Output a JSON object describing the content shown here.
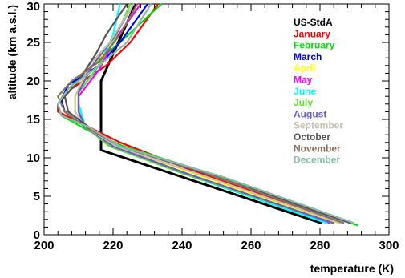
{
  "chart_data": {
    "type": "line",
    "title": "",
    "xlabel": "temperature (K)",
    "ylabel": "altitude (km a.s.l.)",
    "xlim": [
      200,
      300
    ],
    "ylim": [
      0,
      30
    ],
    "x_ticks": [
      "200",
      "220",
      "240",
      "260",
      "280",
      "300"
    ],
    "y_ticks": [
      "0",
      "5",
      "10",
      "15",
      "20",
      "25",
      "30"
    ],
    "legend_position": "top-right",
    "series": [
      {
        "name": "US-StdA",
        "color": "#000000",
        "points": [
          [
            280.5,
            1.5
          ],
          [
            216.5,
            11
          ],
          [
            216.5,
            20
          ],
          [
            226.5,
            30
          ]
        ]
      },
      {
        "name": "January",
        "color": "#ff0000",
        "points": [
          [
            287,
            1.5
          ],
          [
            245,
            8
          ],
          [
            222,
            12
          ],
          [
            213,
            14
          ],
          [
            204,
            16
          ],
          [
            204,
            17
          ],
          [
            208,
            19
          ],
          [
            218,
            22
          ],
          [
            225,
            25
          ],
          [
            233,
            30
          ]
        ]
      },
      {
        "name": "February",
        "color": "#00e000",
        "points": [
          [
            291,
            1.2
          ],
          [
            255,
            7
          ],
          [
            223,
            11.5
          ],
          [
            213,
            13.5
          ],
          [
            205,
            15.5
          ],
          [
            204,
            17
          ],
          [
            206,
            18.5
          ],
          [
            214,
            22
          ],
          [
            222,
            25
          ],
          [
            234,
            30
          ]
        ]
      },
      {
        "name": "March",
        "color": "#0000ff",
        "points": [
          [
            289,
            1.5
          ],
          [
            250,
            7.5
          ],
          [
            222,
            11.5
          ],
          [
            212,
            14
          ],
          [
            206,
            16
          ],
          [
            205,
            17.5
          ],
          [
            207,
            19.5
          ],
          [
            216,
            22
          ],
          [
            222,
            25
          ],
          [
            230,
            30
          ]
        ]
      },
      {
        "name": "April",
        "color": "#ffff00",
        "points": [
          [
            285,
            1.5
          ],
          [
            243,
            8
          ],
          [
            221,
            11.5
          ],
          [
            212,
            14
          ],
          [
            209,
            16
          ],
          [
            209,
            18
          ],
          [
            214,
            22
          ],
          [
            220,
            25
          ],
          [
            228,
            30
          ]
        ]
      },
      {
        "name": "May",
        "color": "#ff00ff",
        "points": [
          [
            283,
            1.5
          ],
          [
            241,
            8
          ],
          [
            220,
            11.5
          ],
          [
            212,
            14
          ],
          [
            210,
            16
          ],
          [
            210,
            18
          ],
          [
            216,
            21.5
          ],
          [
            220,
            25
          ],
          [
            228,
            30
          ]
        ]
      },
      {
        "name": "June",
        "color": "#00ffff",
        "points": [
          [
            282,
            1.5
          ],
          [
            240,
            8
          ],
          [
            219,
            11.5
          ],
          [
            212,
            14
          ],
          [
            210,
            17
          ],
          [
            210,
            18.5
          ],
          [
            216,
            22
          ],
          [
            220,
            26
          ],
          [
            222,
            30
          ]
        ]
      },
      {
        "name": "July",
        "color": "#66dd33",
        "points": [
          [
            284,
            1.5
          ],
          [
            240,
            8
          ],
          [
            219,
            11.5
          ],
          [
            212,
            14
          ],
          [
            210,
            16
          ],
          [
            210,
            18.5
          ],
          [
            215,
            21.5
          ],
          [
            220,
            25
          ],
          [
            225,
            30
          ]
        ]
      },
      {
        "name": "August",
        "color": "#6a5acd",
        "points": [
          [
            284,
            1.5
          ],
          [
            241,
            8
          ],
          [
            220,
            11.5
          ],
          [
            212,
            14
          ],
          [
            210,
            16
          ],
          [
            210,
            18.5
          ],
          [
            214,
            22
          ],
          [
            220,
            25.5
          ],
          [
            226,
            30
          ]
        ]
      },
      {
        "name": "September",
        "color": "#c8bfb0",
        "points": [
          [
            286,
            1.5
          ],
          [
            244,
            8
          ],
          [
            221,
            11.5
          ],
          [
            212,
            14
          ],
          [
            209,
            16
          ],
          [
            209,
            18
          ],
          [
            213,
            22
          ],
          [
            219,
            25
          ],
          [
            226,
            30
          ]
        ]
      },
      {
        "name": "October",
        "color": "#555555",
        "points": [
          [
            289,
            1.5
          ],
          [
            250,
            7.5
          ],
          [
            222,
            11.5
          ],
          [
            213,
            14
          ],
          [
            207,
            16
          ],
          [
            206,
            18
          ],
          [
            210,
            20
          ],
          [
            215,
            23.5
          ],
          [
            218,
            26
          ],
          [
            224,
            30
          ]
        ]
      },
      {
        "name": "November",
        "color": "#8b6f5e",
        "points": [
          [
            287,
            1.5
          ],
          [
            247,
            8
          ],
          [
            222,
            11.5
          ],
          [
            212,
            14
          ],
          [
            206,
            16
          ],
          [
            204,
            18
          ],
          [
            208,
            20
          ],
          [
            216,
            22.5
          ],
          [
            222,
            26
          ],
          [
            227,
            30
          ]
        ]
      },
      {
        "name": "December",
        "color": "#88bbaa",
        "points": [
          [
            290,
            1.5
          ],
          [
            252,
            7.5
          ],
          [
            222,
            11.5
          ],
          [
            213,
            14
          ],
          [
            205,
            15.5
          ],
          [
            204,
            17
          ],
          [
            207,
            19
          ],
          [
            216,
            22
          ],
          [
            224,
            25
          ],
          [
            231,
            30
          ]
        ]
      }
    ]
  }
}
